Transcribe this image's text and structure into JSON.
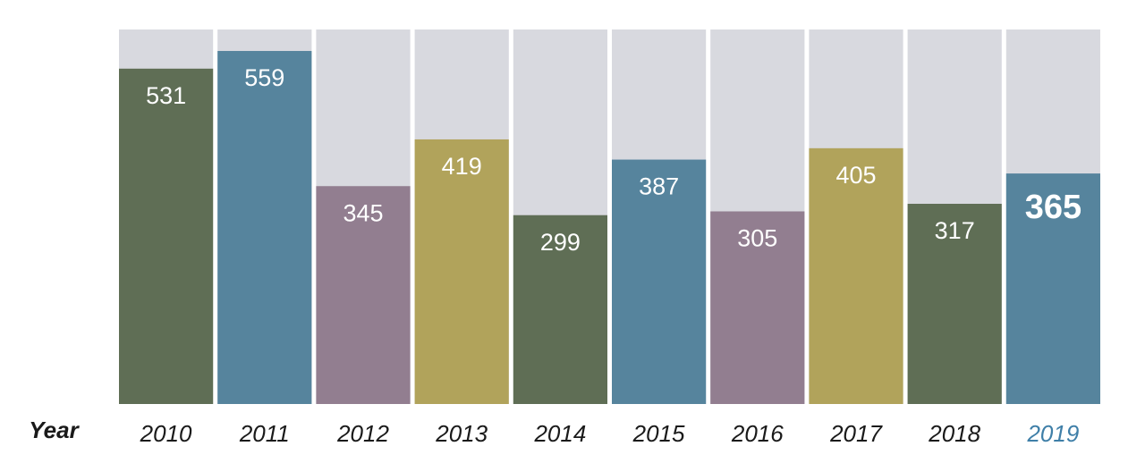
{
  "chart_data": {
    "type": "bar",
    "x_label": "Year",
    "categories": [
      "2010",
      "2011",
      "2012",
      "2013",
      "2014",
      "2015",
      "2016",
      "2017",
      "2018",
      "2019"
    ],
    "values": [
      531,
      559,
      345,
      419,
      299,
      387,
      305,
      405,
      317,
      365
    ],
    "colors": [
      "#5f6e55",
      "#56849d",
      "#927e90",
      "#b1a35b",
      "#5f6e55",
      "#56849d",
      "#927e90",
      "#b1a35b",
      "#5f6e55",
      "#56849d"
    ],
    "background_color": "#d8d9df",
    "highlight_category": "2019",
    "highlight_color": "#3f7fa8",
    "ylim": [
      0,
      593
    ]
  }
}
